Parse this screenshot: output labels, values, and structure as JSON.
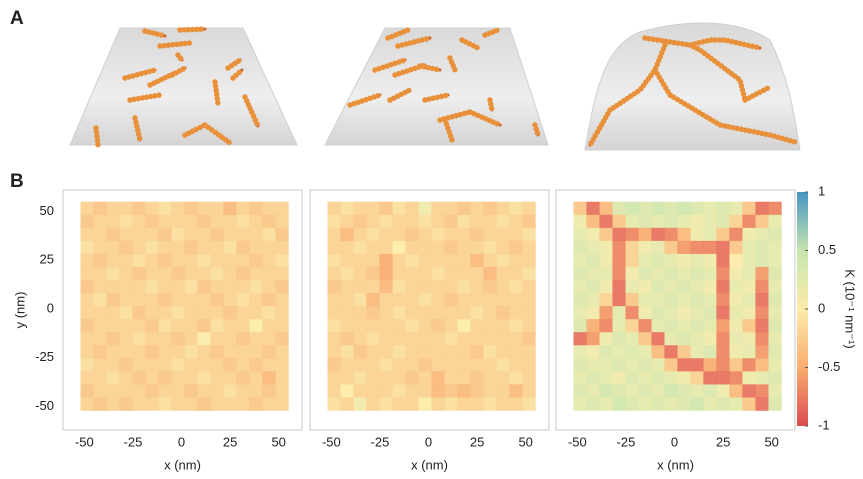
{
  "panels": {
    "a_label": "A",
    "b_label": "B"
  },
  "chart_data": [
    {
      "type": "heatmap",
      "x_label": "x (nm)",
      "y_label": "y (nm)",
      "xlim": [
        -61,
        62
      ],
      "ylim": [
        -62,
        61
      ],
      "xticks": [
        -50,
        -25,
        0,
        25,
        50
      ],
      "yticks": [
        50,
        25,
        0,
        -25,
        -50
      ],
      "xrange": [
        -52,
        55
      ],
      "yrange": [
        -52,
        55
      ],
      "values": [
        [
          -0.2,
          -0.3,
          -0.2,
          -0.2,
          -0.3,
          -0.2,
          -0.1,
          -0.2,
          -0.3,
          -0.2,
          -0.2,
          -0.4,
          -0.2,
          -0.3,
          -0.2,
          -0.2
        ],
        [
          -0.3,
          -0.2,
          -0.2,
          -0.1,
          -0.2,
          -0.3,
          -0.2,
          -0.2,
          -0.2,
          -0.3,
          -0.2,
          -0.2,
          -0.1,
          -0.2,
          -0.3,
          -0.2
        ],
        [
          -0.2,
          -0.2,
          -0.3,
          -0.2,
          -0.2,
          -0.2,
          -0.3,
          -0.1,
          -0.2,
          -0.2,
          -0.3,
          -0.2,
          -0.2,
          -0.2,
          -0.1,
          -0.3
        ],
        [
          -0.1,
          -0.2,
          -0.2,
          -0.3,
          -0.2,
          -0.1,
          -0.2,
          -0.2,
          -0.3,
          -0.2,
          -0.2,
          -0.1,
          -0.3,
          -0.2,
          -0.2,
          -0.2
        ],
        [
          -0.2,
          -0.3,
          -0.2,
          -0.2,
          -0.1,
          -0.2,
          -0.3,
          -0.2,
          -0.2,
          -0.1,
          -0.2,
          -0.2,
          -0.2,
          -0.3,
          -0.2,
          -0.1
        ],
        [
          -0.2,
          -0.2,
          -0.1,
          -0.2,
          -0.3,
          -0.2,
          -0.2,
          -0.3,
          -0.2,
          -0.2,
          -0.1,
          -0.2,
          -0.3,
          -0.2,
          -0.2,
          -0.2
        ],
        [
          -0.3,
          -0.2,
          -0.2,
          -0.2,
          -0.2,
          -0.1,
          -0.2,
          -0.2,
          -0.1,
          -0.3,
          -0.2,
          -0.2,
          -0.2,
          -0.1,
          -0.2,
          -0.3
        ],
        [
          -0.2,
          -0.1,
          -0.3,
          -0.2,
          -0.2,
          -0.2,
          -0.3,
          -0.2,
          -0.2,
          -0.2,
          -0.3,
          -0.2,
          -0.1,
          -0.2,
          -0.3,
          -0.2
        ],
        [
          -0.2,
          -0.2,
          -0.2,
          -0.1,
          -0.3,
          -0.2,
          -0.2,
          -0.1,
          -0.2,
          -0.2,
          -0.2,
          -0.3,
          -0.2,
          -0.2,
          -0.1,
          -0.2
        ],
        [
          -0.3,
          -0.2,
          -0.2,
          -0.2,
          -0.2,
          -0.3,
          -0.1,
          -0.2,
          -0.2,
          -0.3,
          -0.1,
          -0.2,
          -0.2,
          0.0,
          -0.2,
          -0.2
        ],
        [
          -0.2,
          -0.2,
          -0.3,
          -0.2,
          -0.1,
          -0.2,
          -0.2,
          -0.3,
          -0.2,
          0.0,
          -0.2,
          -0.2,
          -0.3,
          -0.2,
          -0.2,
          -0.3
        ],
        [
          -0.2,
          -0.3,
          -0.2,
          -0.2,
          -0.2,
          -0.3,
          -0.2,
          -0.2,
          -0.1,
          -0.2,
          -0.3,
          -0.2,
          -0.2,
          -0.2,
          -0.3,
          -0.2
        ],
        [
          -0.1,
          -0.2,
          -0.2,
          -0.3,
          -0.2,
          -0.2,
          -0.2,
          -0.1,
          -0.2,
          -0.2,
          -0.2,
          -0.3,
          -0.2,
          -0.3,
          -0.2,
          -0.2
        ],
        [
          -0.2,
          -0.2,
          -0.1,
          -0.2,
          -0.3,
          -0.2,
          -0.3,
          -0.2,
          -0.2,
          -0.1,
          -0.2,
          -0.2,
          -0.3,
          -0.2,
          -0.4,
          -0.2
        ],
        [
          -0.3,
          -0.2,
          -0.2,
          -0.2,
          -0.2,
          -0.3,
          -0.2,
          -0.2,
          -0.3,
          -0.2,
          -0.2,
          -0.1,
          -0.2,
          -0.2,
          -0.3,
          -0.2
        ],
        [
          -0.2,
          -0.3,
          -0.2,
          -0.3,
          -0.2,
          -0.2,
          -0.1,
          -0.2,
          -0.2,
          -0.3,
          -0.2,
          -0.2,
          -0.2,
          -0.3,
          -0.2,
          -0.2
        ]
      ]
    },
    {
      "type": "heatmap",
      "x_label": "x (nm)",
      "xlim": [
        -61,
        62
      ],
      "ylim": [
        -62,
        61
      ],
      "xticks": [
        -50,
        -25,
        0,
        25,
        50
      ],
      "xrange": [
        -52,
        55
      ],
      "yrange": [
        -52,
        55
      ],
      "values": [
        [
          -0.2,
          -0.1,
          -0.2,
          -0.2,
          -0.3,
          -0.1,
          -0.2,
          0.1,
          -0.2,
          -0.2,
          -0.3,
          -0.2,
          -0.3,
          -0.2,
          -0.1,
          -0.2
        ],
        [
          -0.1,
          -0.2,
          -0.3,
          -0.2,
          -0.1,
          -0.2,
          -0.2,
          -0.1,
          -0.2,
          -0.3,
          -0.1,
          -0.2,
          -0.2,
          -0.1,
          -0.2,
          -0.3
        ],
        [
          -0.2,
          -0.4,
          -0.2,
          -0.1,
          -0.2,
          -0.2,
          -0.3,
          -0.2,
          -0.1,
          -0.2,
          -0.2,
          -0.3,
          -0.2,
          -0.2,
          -0.2,
          -0.1
        ],
        [
          -0.2,
          -0.2,
          -0.1,
          -0.2,
          -0.2,
          0.0,
          -0.2,
          -0.2,
          -0.2,
          -0.3,
          -0.2,
          -0.2,
          -0.1,
          -0.2,
          -0.3,
          -0.2
        ],
        [
          -0.1,
          -0.2,
          -0.2,
          -0.2,
          -0.5,
          -0.2,
          -0.1,
          -0.2,
          -0.2,
          -0.2,
          -0.2,
          -0.4,
          -0.2,
          -0.1,
          -0.2,
          -0.2
        ],
        [
          -0.2,
          -0.1,
          -0.2,
          -0.3,
          -0.5,
          -0.2,
          -0.2,
          -0.2,
          -0.1,
          -0.2,
          -0.2,
          -0.2,
          -0.4,
          -0.2,
          -0.2,
          -0.1
        ],
        [
          -0.3,
          -0.2,
          -0.2,
          -0.2,
          -0.4,
          -0.1,
          -0.2,
          -0.2,
          -0.2,
          -0.2,
          -0.1,
          -0.2,
          -0.3,
          -0.2,
          -0.1,
          -0.2
        ],
        [
          -0.2,
          -0.2,
          -0.1,
          -0.4,
          -0.2,
          -0.2,
          -0.2,
          -0.1,
          -0.2,
          -0.3,
          -0.2,
          -0.2,
          -0.2,
          -0.2,
          -0.2,
          -0.2
        ],
        [
          -0.2,
          -0.2,
          -0.2,
          -0.3,
          -0.2,
          -0.1,
          -0.2,
          -0.2,
          -0.2,
          -0.2,
          -0.2,
          -0.1,
          -0.2,
          -0.3,
          -0.2,
          -0.2
        ],
        [
          -0.1,
          -0.2,
          -0.2,
          -0.2,
          -0.2,
          -0.2,
          -0.1,
          -0.2,
          -0.3,
          -0.2,
          0.0,
          -0.2,
          -0.2,
          -0.2,
          -0.1,
          -0.2
        ],
        [
          -0.2,
          -0.3,
          -0.2,
          -0.1,
          -0.2,
          -0.2,
          -0.2,
          -0.2,
          -0.2,
          -0.1,
          -0.2,
          -0.2,
          -0.2,
          -0.2,
          -0.2,
          -0.3
        ],
        [
          -0.2,
          -0.1,
          -0.3,
          -0.2,
          -0.2,
          -0.1,
          -0.2,
          -0.2,
          -0.2,
          -0.2,
          -0.2,
          -0.3,
          -0.1,
          -0.2,
          -0.2,
          -0.2
        ],
        [
          -0.3,
          -0.2,
          -0.2,
          -0.2,
          -0.1,
          -0.2,
          -0.2,
          -0.3,
          -0.2,
          -0.2,
          -0.2,
          -0.2,
          -0.2,
          -0.1,
          -0.2,
          -0.2
        ],
        [
          -0.2,
          -0.2,
          -0.1,
          -0.2,
          -0.2,
          -0.2,
          -0.3,
          -0.2,
          -0.4,
          -0.2,
          -0.2,
          -0.3,
          -0.2,
          -0.2,
          -0.1,
          -0.2
        ],
        [
          -0.2,
          0.0,
          -0.2,
          -0.2,
          -0.2,
          -0.1,
          -0.2,
          -0.2,
          -0.4,
          -0.3,
          -0.4,
          -0.3,
          -0.2,
          -0.2,
          -0.4,
          -0.2
        ],
        [
          -0.1,
          -0.2,
          0.1,
          -0.2,
          -0.1,
          -0.2,
          -0.2,
          0.0,
          -0.2,
          -0.1,
          -0.2,
          -0.2,
          -0.1,
          -0.2,
          -0.2,
          -0.1
        ]
      ]
    },
    {
      "type": "heatmap",
      "x_label": "x (nm)",
      "xlim": [
        -61,
        62
      ],
      "ylim": [
        -62,
        61
      ],
      "xticks": [
        -50,
        -25,
        0,
        25,
        50
      ],
      "xrange": [
        -52,
        55
      ],
      "yrange": [
        -52,
        55
      ],
      "values": [
        [
          -0.3,
          -0.8,
          -0.4,
          0.3,
          0.4,
          0.3,
          0.4,
          0.3,
          0.4,
          0.3,
          0.2,
          0.3,
          0.2,
          -0.3,
          -0.8,
          -0.7
        ],
        [
          0.1,
          -0.4,
          -0.8,
          -0.3,
          0.2,
          0.3,
          0.2,
          0.3,
          0.2,
          0.1,
          0.2,
          0.3,
          -0.2,
          -0.7,
          -0.3,
          0.2
        ],
        [
          0.2,
          0.1,
          -0.3,
          -0.8,
          -0.7,
          -0.5,
          -0.8,
          -0.7,
          -0.4,
          0.1,
          0.2,
          -0.3,
          -0.7,
          0.1,
          0.2,
          0.3
        ],
        [
          0.3,
          0.2,
          0.1,
          -0.7,
          -0.2,
          0.1,
          0.2,
          -0.3,
          -0.6,
          -0.7,
          -0.7,
          -0.8,
          -0.3,
          0.2,
          0.3,
          0.2
        ],
        [
          0.2,
          0.3,
          0.1,
          -0.7,
          -0.2,
          0.2,
          0.3,
          0.2,
          0.1,
          0.2,
          0.1,
          -0.8,
          0.0,
          0.2,
          0.3,
          0.2
        ],
        [
          0.3,
          0.2,
          0.2,
          -0.7,
          0.1,
          0.3,
          0.2,
          0.3,
          0.2,
          0.3,
          0.2,
          -0.7,
          0.1,
          0.2,
          -0.6,
          0.3
        ],
        [
          0.2,
          0.3,
          0.1,
          -0.8,
          0.2,
          0.1,
          0.3,
          0.2,
          0.3,
          0.2,
          0.1,
          -0.8,
          0.2,
          0.1,
          -0.7,
          0.2
        ],
        [
          0.3,
          0.2,
          -0.2,
          -0.8,
          -0.3,
          0.2,
          0.2,
          0.3,
          0.2,
          0.3,
          0.2,
          -0.7,
          0.1,
          0.2,
          -0.8,
          0.3
        ],
        [
          0.2,
          0.1,
          -0.6,
          0.2,
          -0.7,
          0.1,
          0.3,
          0.2,
          0.1,
          0.2,
          0.3,
          -0.8,
          0.2,
          0.1,
          -0.7,
          0.2
        ],
        [
          0.3,
          -0.5,
          -0.7,
          0.2,
          -0.2,
          -0.7,
          0.2,
          0.3,
          0.2,
          0.3,
          0.2,
          -0.6,
          0.1,
          -0.3,
          -0.8,
          0.3
        ],
        [
          -0.8,
          -0.6,
          0.1,
          0.3,
          0.2,
          -0.3,
          -0.8,
          0.2,
          0.3,
          0.2,
          0.1,
          -0.7,
          0.2,
          0.1,
          -0.7,
          0.2
        ],
        [
          0.2,
          0.1,
          0.3,
          0.2,
          0.3,
          0.2,
          -0.4,
          -0.8,
          -0.3,
          0.2,
          0.3,
          -0.7,
          0.1,
          0.2,
          -0.6,
          0.3
        ],
        [
          0.3,
          0.2,
          0.2,
          0.3,
          0.2,
          0.3,
          0.2,
          -0.3,
          -0.8,
          -0.8,
          -0.5,
          -0.7,
          -0.3,
          -0.7,
          -0.4,
          0.2
        ],
        [
          0.2,
          0.3,
          0.2,
          0.1,
          0.3,
          0.2,
          0.3,
          0.2,
          0.1,
          -0.2,
          -0.8,
          -0.8,
          -0.7,
          0.1,
          0.2,
          0.3
        ],
        [
          0.3,
          0.2,
          0.4,
          0.3,
          0.2,
          0.3,
          0.2,
          0.4,
          0.3,
          0.2,
          0.3,
          0.1,
          -0.4,
          -0.8,
          -0.7,
          0.2
        ],
        [
          0.2,
          0.3,
          0.2,
          0.4,
          0.3,
          0.2,
          0.3,
          0.2,
          0.3,
          0.4,
          0.2,
          0.3,
          0.2,
          -0.3,
          -0.8,
          0.3
        ]
      ],
      "colorbar": {
        "label": "K (10⁻¹ nm⁻¹)",
        "lim": [
          -1,
          1
        ],
        "ticks": [
          1,
          0.5,
          0,
          -0.5,
          -1
        ],
        "colors": [
          "#d7373f",
          "#f8a45f",
          "#fbe9a0",
          "#bfe3a5",
          "#3288bd"
        ]
      }
    }
  ]
}
